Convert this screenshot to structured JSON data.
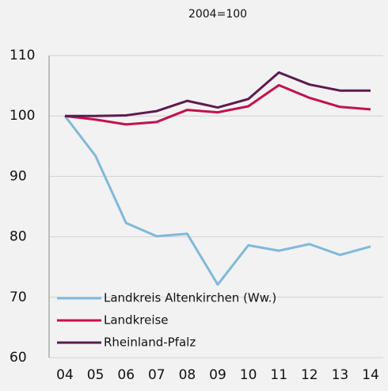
{
  "chart_data": {
    "type": "line",
    "title": "2004=100",
    "categories": [
      "04",
      "05",
      "06",
      "07",
      "08",
      "09",
      "10",
      "11",
      "12",
      "13",
      "14"
    ],
    "series": [
      {
        "name": "Landkreis Altenkirchen (Ww.)",
        "color": "#80b9d9",
        "values": [
          100,
          93.4,
          82.3,
          80.1,
          80.5,
          72.1,
          78.6,
          77.7,
          78.8,
          77.0,
          78.4
        ]
      },
      {
        "name": "Landkreise",
        "color": "#c2124b",
        "values": [
          100,
          99.4,
          98.6,
          99.0,
          101.0,
          100.6,
          101.6,
          105.1,
          103.0,
          101.5,
          101.1
        ]
      },
      {
        "name": "Rheinland-Pfalz",
        "color": "#5e1a50",
        "values": [
          100,
          100.0,
          100.1,
          100.8,
          102.5,
          101.4,
          102.8,
          107.2,
          105.2,
          104.2,
          104.2
        ]
      }
    ],
    "ylim": [
      60,
      110
    ],
    "yticks": [
      60,
      70,
      80,
      90,
      100,
      110
    ],
    "grid": true,
    "legend": "lower left"
  }
}
